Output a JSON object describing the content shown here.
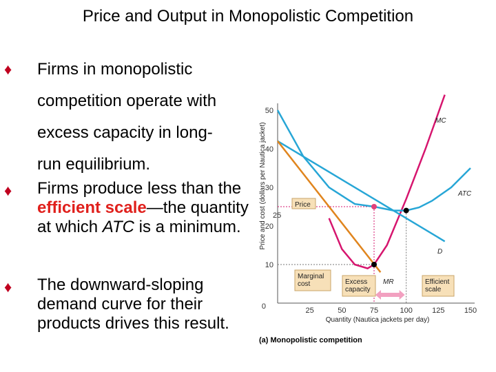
{
  "title": "Price and Output in Monopolistic Competition",
  "bullets": [
    {
      "text": "Firms in monopolistic competition operate with excess capacity in long-run equilibrium.",
      "lines": [
        "Firms in monopolistic",
        "competition operate with",
        "excess capacity in long-",
        "run equilibrium."
      ]
    },
    {
      "pre": "Firms produce less than the ",
      "highlight": "efficient scale",
      "mid": "—the quantity at which ",
      "em": "ATC",
      "post": " is a minimum."
    },
    {
      "lines": [
        "The downward-sloping",
        "demand curve for their",
        "products drives this result."
      ]
    }
  ],
  "bullet_glyph": "♦",
  "figure": {
    "caption": "(a) Monopolistic competition",
    "price_label": "Price",
    "marginal_cost_label": [
      "Marginal",
      "cost"
    ],
    "excess_capacity_label": [
      "Excess",
      "capacity"
    ],
    "efficient_scale_label": [
      "Efficient",
      "scale"
    ],
    "price_value_label": "25"
  },
  "chart_data": {
    "type": "line",
    "xlabel": "Quantity (Nautica jackets per day)",
    "ylabel": "Price and cost (dollars per Nautica jacket)",
    "xlim": [
      0,
      150
    ],
    "ylim": [
      0,
      50
    ],
    "xticks": [
      "0",
      "25",
      "50",
      "75",
      "100",
      "125",
      "150"
    ],
    "yticks": [
      "10",
      "20",
      "30",
      "40",
      "50"
    ],
    "highlight_tick": "75",
    "series": [
      {
        "name": "MC",
        "color": "#d6156e",
        "points": [
          [
            40,
            22
          ],
          [
            50,
            14
          ],
          [
            60,
            10
          ],
          [
            70,
            9
          ],
          [
            75,
            10
          ],
          [
            85,
            15
          ],
          [
            100,
            27
          ],
          [
            115,
            40
          ],
          [
            130,
            54
          ]
        ]
      },
      {
        "name": "ATC",
        "color": "#27a6d6",
        "points": [
          [
            0,
            50
          ],
          [
            20,
            38
          ],
          [
            40,
            30
          ],
          [
            60,
            25.7
          ],
          [
            75,
            25
          ],
          [
            90,
            24
          ],
          [
            100,
            24
          ],
          [
            110,
            24.8
          ],
          [
            120,
            26.5
          ],
          [
            135,
            30
          ],
          [
            150,
            35
          ]
        ]
      },
      {
        "name": "D",
        "color": "#27a6d6",
        "points": [
          [
            0,
            42
          ],
          [
            130,
            16
          ]
        ]
      },
      {
        "name": "MR",
        "color": "#e0851e",
        "points": [
          [
            0,
            42
          ],
          [
            80,
            8
          ]
        ]
      }
    ],
    "points": [
      {
        "x": 75,
        "y": 25,
        "color": "#e0407a"
      },
      {
        "x": 75,
        "y": 10,
        "color": "#000"
      },
      {
        "x": 100,
        "y": 24,
        "color": "#000"
      }
    ],
    "colors": {
      "accent_red": "#e0201c",
      "bullet": "#c0001f",
      "guide": "#d6156e"
    }
  }
}
